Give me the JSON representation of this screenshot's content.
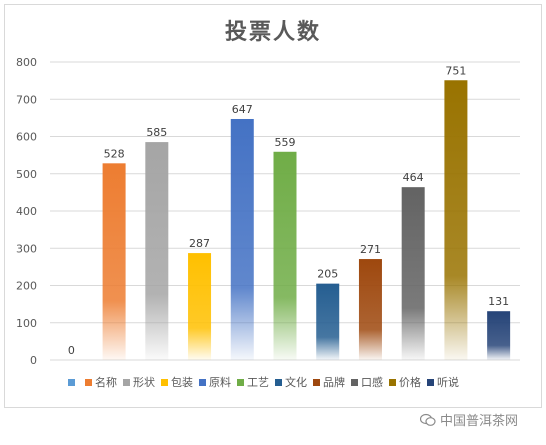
{
  "chart_data": {
    "type": "bar",
    "title": "投票人数",
    "ylim": [
      0,
      800
    ],
    "yticks": [
      0,
      100,
      200,
      300,
      400,
      500,
      600,
      700,
      800
    ],
    "grid": true,
    "legend_position": "bottom",
    "categories": [
      "",
      "名称",
      "形状",
      "包装",
      "原料",
      "工艺",
      "文化",
      "品牌",
      "口感",
      "价格",
      "听说"
    ],
    "values": [
      0,
      528,
      585,
      287,
      647,
      559,
      205,
      271,
      464,
      751,
      131
    ],
    "colors": [
      "#5b9bd5",
      "#ed7d31",
      "#a5a5a5",
      "#ffc000",
      "#4472c4",
      "#70ad47",
      "#255e91",
      "#9e480e",
      "#636363",
      "#997300",
      "#264478"
    ]
  },
  "watermark": {
    "text": "中国普洱茶网"
  }
}
